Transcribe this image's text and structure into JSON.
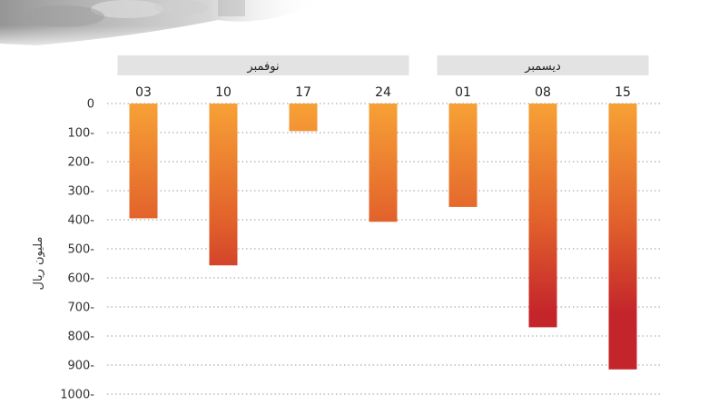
{
  "chart_data": {
    "type": "bar",
    "categories": [
      "03",
      "10",
      "17",
      "24",
      "01",
      "08",
      "15"
    ],
    "values": [
      -395,
      -557,
      -95,
      -407,
      -356,
      -770,
      -915
    ],
    "groups": [
      {
        "label": "نوفمبر",
        "categories": [
          "03",
          "10",
          "17",
          "24"
        ]
      },
      {
        "label": "ديسمبر",
        "categories": [
          "01",
          "08",
          "15"
        ]
      }
    ],
    "ylabel": "مليون ريال",
    "ylim": [
      -1000,
      0
    ],
    "yticks": [
      0,
      -100,
      -200,
      -300,
      -400,
      -500,
      -600,
      -700,
      -800,
      -900,
      -1000
    ],
    "ytick_labels": [
      "0",
      "100-",
      "200-",
      "300-",
      "400-",
      "500-",
      "600-",
      "700-",
      "800-",
      "900-",
      "1000-"
    ],
    "grid": true,
    "colors": {
      "bar_top": "#f7a136",
      "bar_mid": "#e2622b",
      "bar_bottom": "#c4252b",
      "band": "#e3e3e3",
      "grid": "#9a9a9a"
    }
  }
}
